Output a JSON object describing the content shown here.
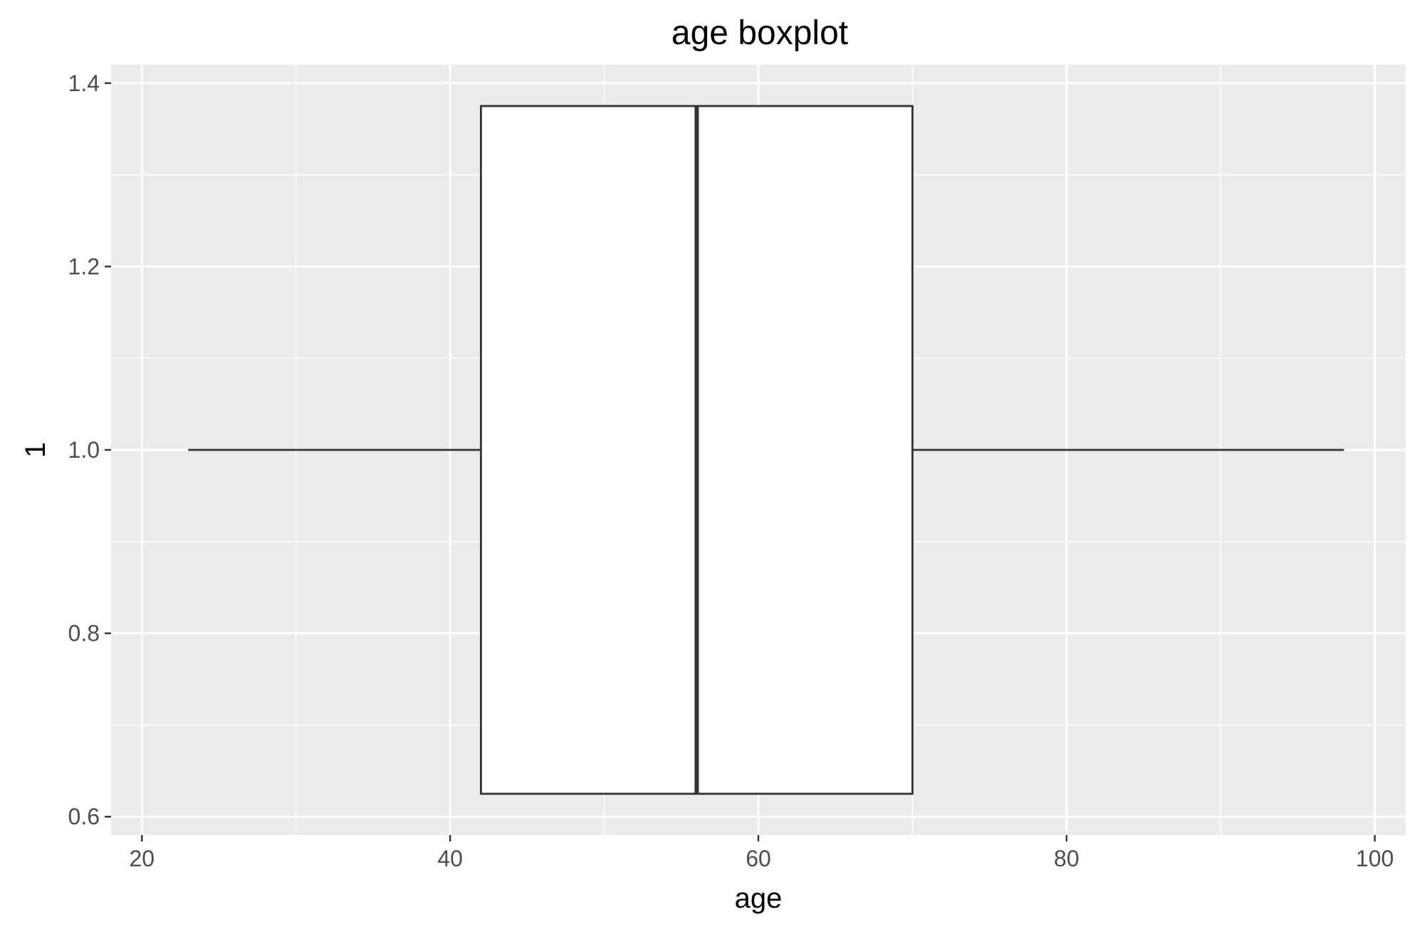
{
  "chart_data": {
    "type": "boxplot",
    "title": "age boxplot",
    "xlabel": "age",
    "ylabel": "1",
    "xlim": [
      18.0,
      102.0
    ],
    "ylim": [
      0.58,
      1.42
    ],
    "x_ticks": [
      20,
      40,
      60,
      80,
      100
    ],
    "x_minor_ticks": [
      30,
      50,
      70,
      90
    ],
    "y_ticks": [
      0.6,
      0.8,
      1.0,
      1.2,
      1.4
    ],
    "y_tick_labels": [
      "0.6",
      "0.8",
      "1.0",
      "1.2",
      "1.4"
    ],
    "y_minor_ticks": [
      0.7,
      0.9,
      1.1,
      1.3
    ],
    "grid": true,
    "orientation": "horizontal",
    "box": {
      "variable": "age",
      "y": 1.0,
      "y_range": [
        0.625,
        1.375
      ],
      "whisker_low": 23,
      "q1": 42,
      "median": 56,
      "q3": 70,
      "whisker_high": 98,
      "outliers": []
    },
    "colors": {
      "panel_background": "#ebebeb",
      "grid": "#ffffff",
      "box_fill": "#ffffff",
      "box_stroke": "#333333",
      "tick_label": "#4d4d4d",
      "tick_mark": "#333333"
    }
  }
}
